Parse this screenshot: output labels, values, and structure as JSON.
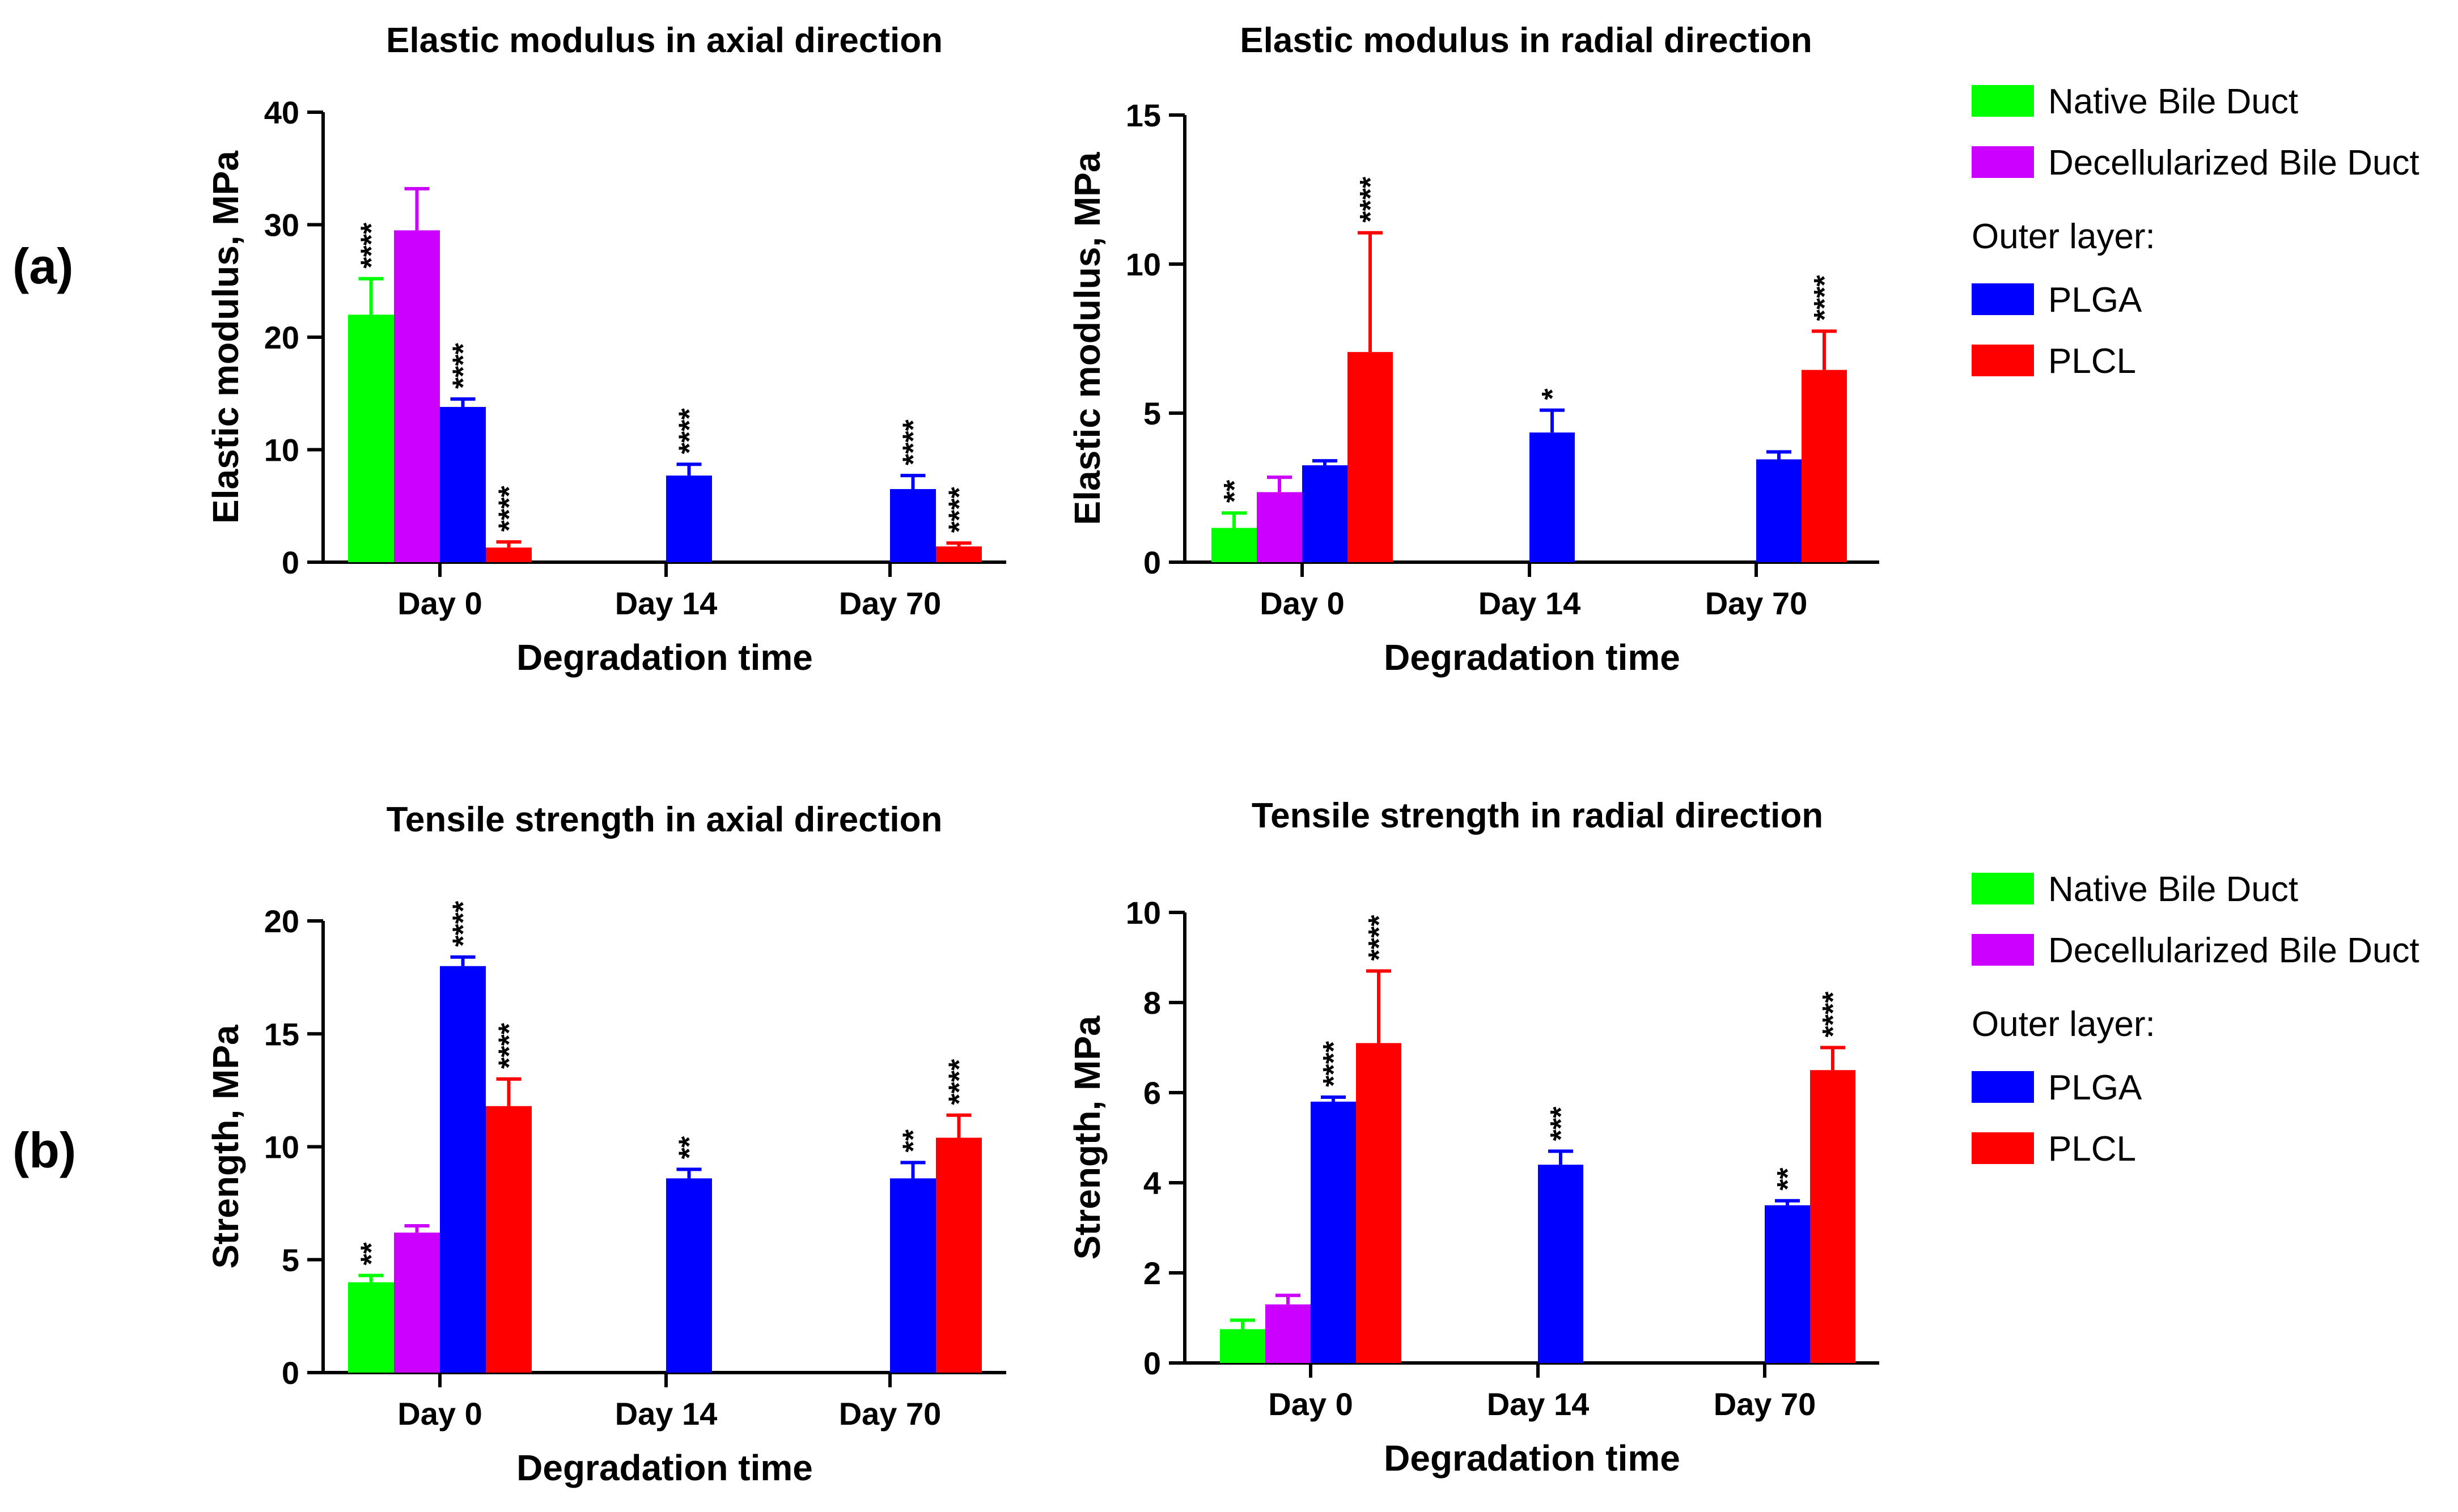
{
  "figure": {
    "panel_labels": [
      "(a)",
      "(b)"
    ],
    "legends": [
      {
        "items": [
          {
            "label": "Native Bile Duct",
            "color": "#00ff00"
          },
          {
            "label": "Decellularized Bile Duct",
            "color": "#cc00ff"
          }
        ],
        "subtitle": "Outer layer:",
        "sub_items": [
          {
            "label": "PLGA",
            "color": "#0000ff"
          },
          {
            "label": "PLCL",
            "color": "#ff0000"
          }
        ]
      },
      {
        "items": [
          {
            "label": "Native Bile Duct",
            "color": "#00ff00"
          },
          {
            "label": "Decellularized Bile Duct",
            "color": "#cc00ff"
          }
        ],
        "subtitle": "Outer layer:",
        "sub_items": [
          {
            "label": "PLGA",
            "color": "#0000ff"
          },
          {
            "label": "PLCL",
            "color": "#ff0000"
          }
        ]
      }
    ]
  },
  "chart_data": [
    {
      "type": "bar",
      "title": "Elastic modulus in axial direction",
      "xlabel": "Degradation time",
      "ylabel": "Elastic modulus, MPa",
      "ylim": [
        0,
        40
      ],
      "yticks": [
        0,
        10,
        20,
        30,
        40
      ],
      "categories": [
        "Day 0",
        "Day 14",
        "Day 70"
      ],
      "series": [
        {
          "name": "Native Bile Duct",
          "color": "#00ff00",
          "values": [
            22.0,
            null,
            null
          ],
          "errors": [
            3.2,
            null,
            null
          ],
          "sig": [
            "****",
            null,
            null
          ]
        },
        {
          "name": "Decellularized Bile Duct",
          "color": "#cc00ff",
          "values": [
            29.5,
            null,
            null
          ],
          "errors": [
            3.7,
            null,
            null
          ],
          "sig": [
            null,
            null,
            null
          ]
        },
        {
          "name": "PLGA",
          "color": "#0000ff",
          "values": [
            13.8,
            7.7,
            6.5
          ],
          "errors": [
            0.7,
            1.0,
            1.2
          ],
          "sig": [
            "****",
            "****",
            "****"
          ]
        },
        {
          "name": "PLCL",
          "color": "#ff0000",
          "values": [
            1.3,
            null,
            1.4
          ],
          "errors": [
            0.5,
            null,
            0.3
          ],
          "sig": [
            "****",
            null,
            "****"
          ]
        }
      ]
    },
    {
      "type": "bar",
      "title": "Elastic modulus in radial direction",
      "xlabel": "Degradation time",
      "ylabel": "Elastic modulus, MPa",
      "ylim": [
        0,
        15
      ],
      "yticks": [
        0,
        5,
        10,
        15
      ],
      "categories": [
        "Day 0",
        "Day 14",
        "Day 70"
      ],
      "series": [
        {
          "name": "Native Bile Duct",
          "color": "#00ff00",
          "values": [
            1.15,
            null,
            null
          ],
          "errors": [
            0.5,
            null,
            null
          ],
          "sig": [
            "**",
            null,
            null
          ]
        },
        {
          "name": "Decellularized Bile Duct",
          "color": "#cc00ff",
          "values": [
            2.35,
            null,
            null
          ],
          "errors": [
            0.5,
            null,
            null
          ],
          "sig": [
            null,
            null,
            null
          ]
        },
        {
          "name": "PLGA",
          "color": "#0000ff",
          "values": [
            3.25,
            4.35,
            3.45
          ],
          "errors": [
            0.15,
            0.75,
            0.25
          ],
          "sig": [
            null,
            "*",
            null
          ]
        },
        {
          "name": "PLCL",
          "color": "#ff0000",
          "values": [
            7.05,
            null,
            6.45
          ],
          "errors": [
            4.0,
            null,
            1.3
          ],
          "sig": [
            "****",
            null,
            "****"
          ]
        }
      ]
    },
    {
      "type": "bar",
      "title": "Tensile strength in axial direction",
      "xlabel": "Degradation time",
      "ylabel": "Strength, MPa",
      "ylim": [
        0,
        20
      ],
      "yticks": [
        0,
        5,
        10,
        15,
        20
      ],
      "categories": [
        "Day 0",
        "Day 14",
        "Day 70"
      ],
      "series": [
        {
          "name": "Native Bile Duct",
          "color": "#00ff00",
          "values": [
            4.0,
            null,
            null
          ],
          "errors": [
            0.3,
            null,
            null
          ],
          "sig": [
            "**",
            null,
            null
          ]
        },
        {
          "name": "Decellularized Bile Duct",
          "color": "#cc00ff",
          "values": [
            6.2,
            null,
            null
          ],
          "errors": [
            0.3,
            null,
            null
          ],
          "sig": [
            null,
            null,
            null
          ]
        },
        {
          "name": "PLGA",
          "color": "#0000ff",
          "values": [
            18.0,
            8.6,
            8.6
          ],
          "errors": [
            0.4,
            0.4,
            0.7
          ],
          "sig": [
            "****",
            "**",
            "**"
          ]
        },
        {
          "name": "PLCL",
          "color": "#ff0000",
          "values": [
            11.8,
            null,
            10.4
          ],
          "errors": [
            1.2,
            null,
            1.0
          ],
          "sig": [
            "****",
            null,
            "****"
          ]
        }
      ]
    },
    {
      "type": "bar",
      "title": "Tensile strength in radial direction",
      "xlabel": "Degradation time",
      "ylabel": "Strength, MPa",
      "ylim": [
        0,
        10
      ],
      "yticks": [
        0,
        2,
        4,
        6,
        8,
        10
      ],
      "categories": [
        "Day 0",
        "Day 14",
        "Day 70"
      ],
      "series": [
        {
          "name": "Native Bile Duct",
          "color": "#00ff00",
          "values": [
            0.75,
            null,
            null
          ],
          "errors": [
            0.2,
            null,
            null
          ],
          "sig": [
            null,
            null,
            null
          ]
        },
        {
          "name": "Decellularized Bile Duct",
          "color": "#cc00ff",
          "values": [
            1.3,
            null,
            null
          ],
          "errors": [
            0.2,
            null,
            null
          ],
          "sig": [
            null,
            null,
            null
          ]
        },
        {
          "name": "PLGA",
          "color": "#0000ff",
          "values": [
            5.8,
            4.4,
            3.5
          ],
          "errors": [
            0.1,
            0.3,
            0.1
          ],
          "sig": [
            "****",
            "***",
            "**"
          ]
        },
        {
          "name": "PLCL",
          "color": "#ff0000",
          "values": [
            7.1,
            null,
            6.5
          ],
          "errors": [
            1.6,
            null,
            0.5
          ],
          "sig": [
            "****",
            null,
            "****"
          ]
        }
      ]
    }
  ]
}
